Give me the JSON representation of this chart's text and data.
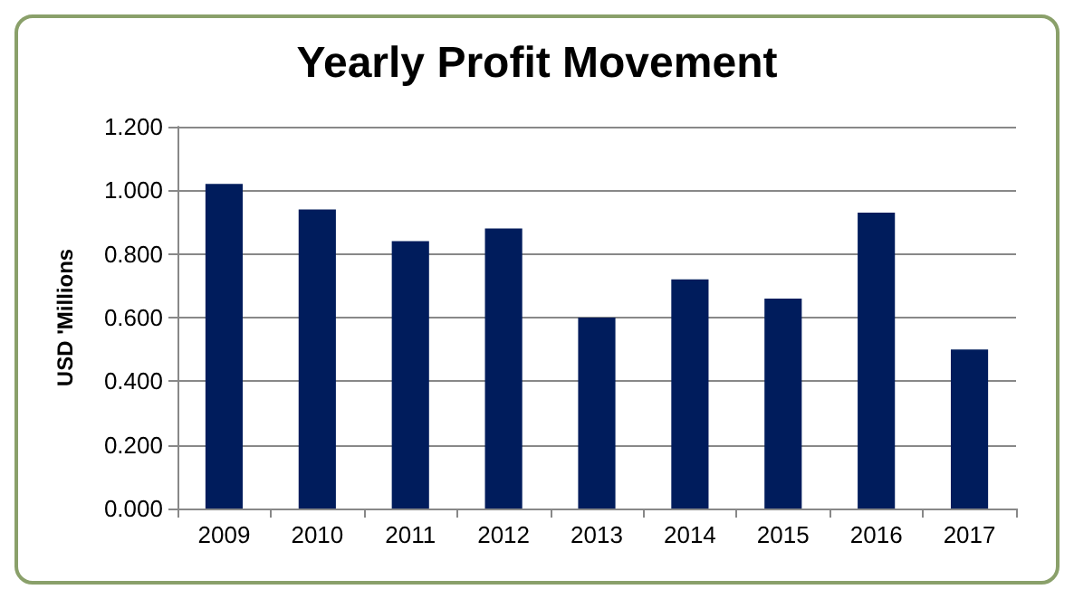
{
  "chart_data": {
    "type": "bar",
    "title": "Yearly Profit Movement",
    "ylabel": "USD 'Millions",
    "categories": [
      "2009",
      "2010",
      "2011",
      "2012",
      "2013",
      "2014",
      "2015",
      "2016",
      "2017"
    ],
    "values": [
      1.02,
      0.94,
      0.84,
      0.88,
      0.6,
      0.72,
      0.66,
      0.93,
      0.5
    ],
    "color": "#001c5c",
    "ylim": [
      0,
      1.2
    ],
    "yticks": [
      {
        "value": 0,
        "label": "0.000"
      },
      {
        "value": 0.2,
        "label": "0.200"
      },
      {
        "value": 0.4,
        "label": "0.400"
      },
      {
        "value": 0.6,
        "label": "0.600"
      },
      {
        "value": 0.8,
        "label": "0.800"
      },
      {
        "value": 1.0,
        "label": "1.000"
      },
      {
        "value": 1.2,
        "label": "1.200"
      }
    ],
    "grid": "y"
  }
}
